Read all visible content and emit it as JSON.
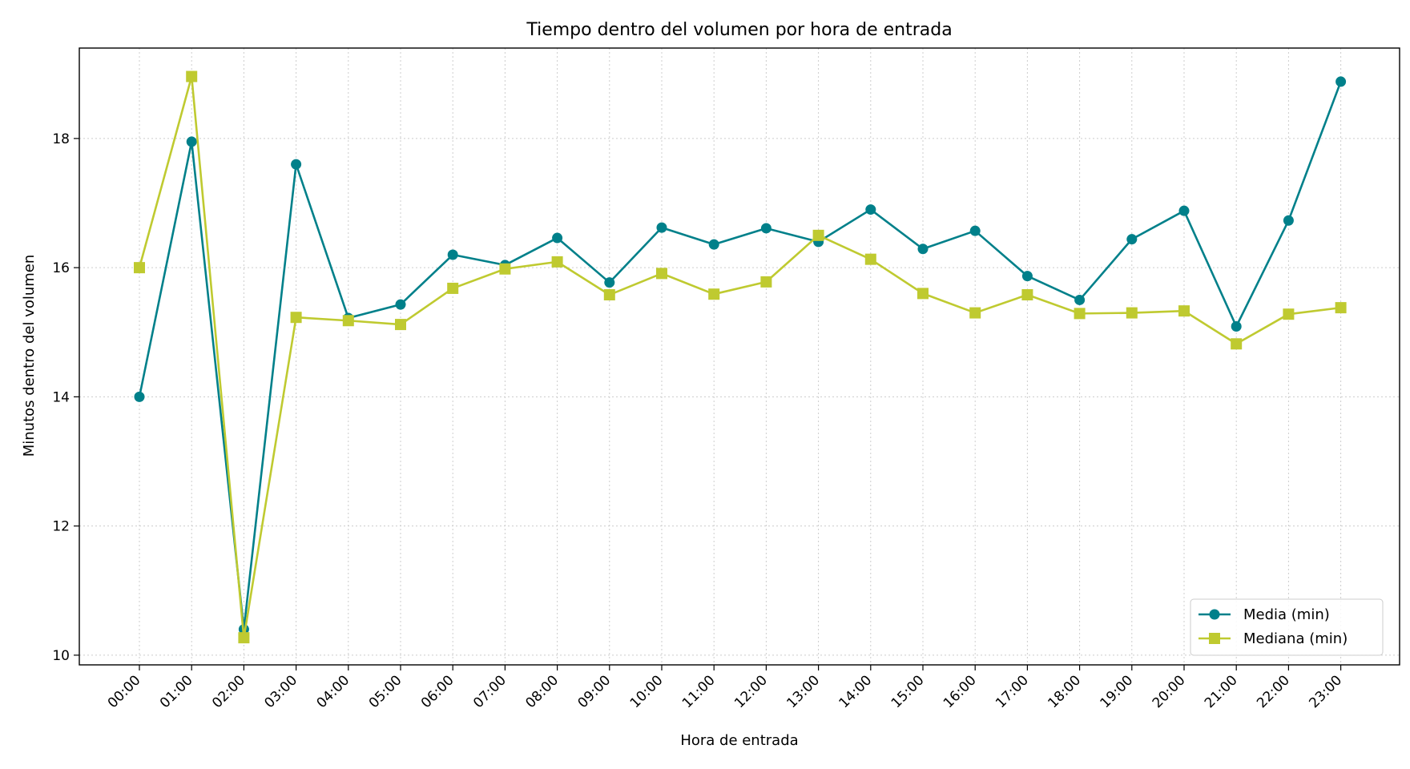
{
  "chart_data": {
    "type": "line",
    "title": "Tiempo dentro del volumen por hora de entrada",
    "xlabel": "Hora de entrada",
    "ylabel": "Minutos dentro del volumen",
    "categories": [
      "00:00",
      "01:00",
      "02:00",
      "03:00",
      "04:00",
      "05:00",
      "06:00",
      "07:00",
      "08:00",
      "09:00",
      "10:00",
      "11:00",
      "12:00",
      "13:00",
      "14:00",
      "15:00",
      "16:00",
      "17:00",
      "18:00",
      "19:00",
      "20:00",
      "21:00",
      "22:00",
      "23:00"
    ],
    "yticks": [
      10,
      12,
      14,
      16,
      18
    ],
    "ylim": [
      9.85,
      19.4
    ],
    "grid": true,
    "legend_position": "bottom-right",
    "series": [
      {
        "name": "Media (min)",
        "color": "#00808a",
        "marker": "circle",
        "values": [
          14.0,
          17.95,
          10.4,
          17.6,
          15.22,
          15.43,
          16.2,
          16.04,
          16.46,
          15.77,
          16.62,
          16.36,
          16.61,
          16.4,
          16.9,
          16.29,
          16.57,
          15.87,
          15.5,
          16.44,
          16.88,
          15.09,
          16.73,
          18.88
        ]
      },
      {
        "name": "Mediana (min)",
        "color": "#bfca30",
        "marker": "square",
        "values": [
          16.0,
          18.96,
          10.27,
          15.23,
          15.18,
          15.12,
          15.68,
          15.98,
          16.09,
          15.58,
          15.91,
          15.59,
          15.78,
          16.5,
          16.13,
          15.6,
          15.3,
          15.58,
          15.29,
          15.3,
          15.33,
          14.82,
          15.28,
          15.38
        ]
      }
    ]
  }
}
